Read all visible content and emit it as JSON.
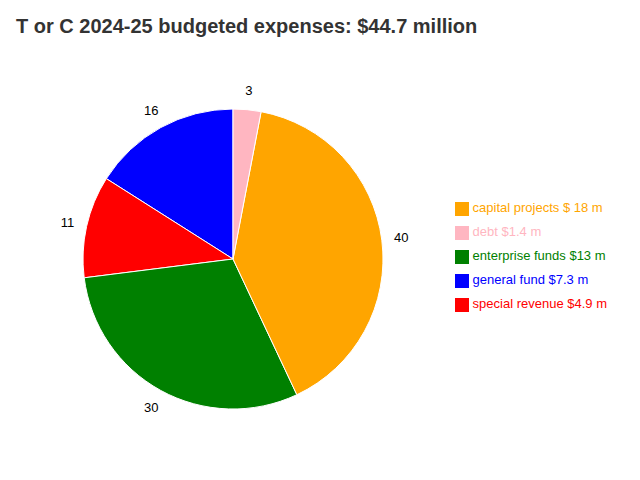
{
  "chart_data": {
    "type": "pie",
    "title": "T or C 2024-25 budgeted expenses: $44.7 million",
    "categories": [
      "general fund $7.3 m",
      "special revenue $4.9 m",
      "enterprise funds $13 m",
      "capital projects $ 18 m",
      "debt $1.4 m"
    ],
    "values": [
      16,
      11,
      30,
      40,
      3
    ],
    "colors": [
      "#0000FF",
      "#FF0000",
      "#008000",
      "#FFA500",
      "#FFB6C1"
    ],
    "data_labels": true,
    "legend": "right"
  }
}
